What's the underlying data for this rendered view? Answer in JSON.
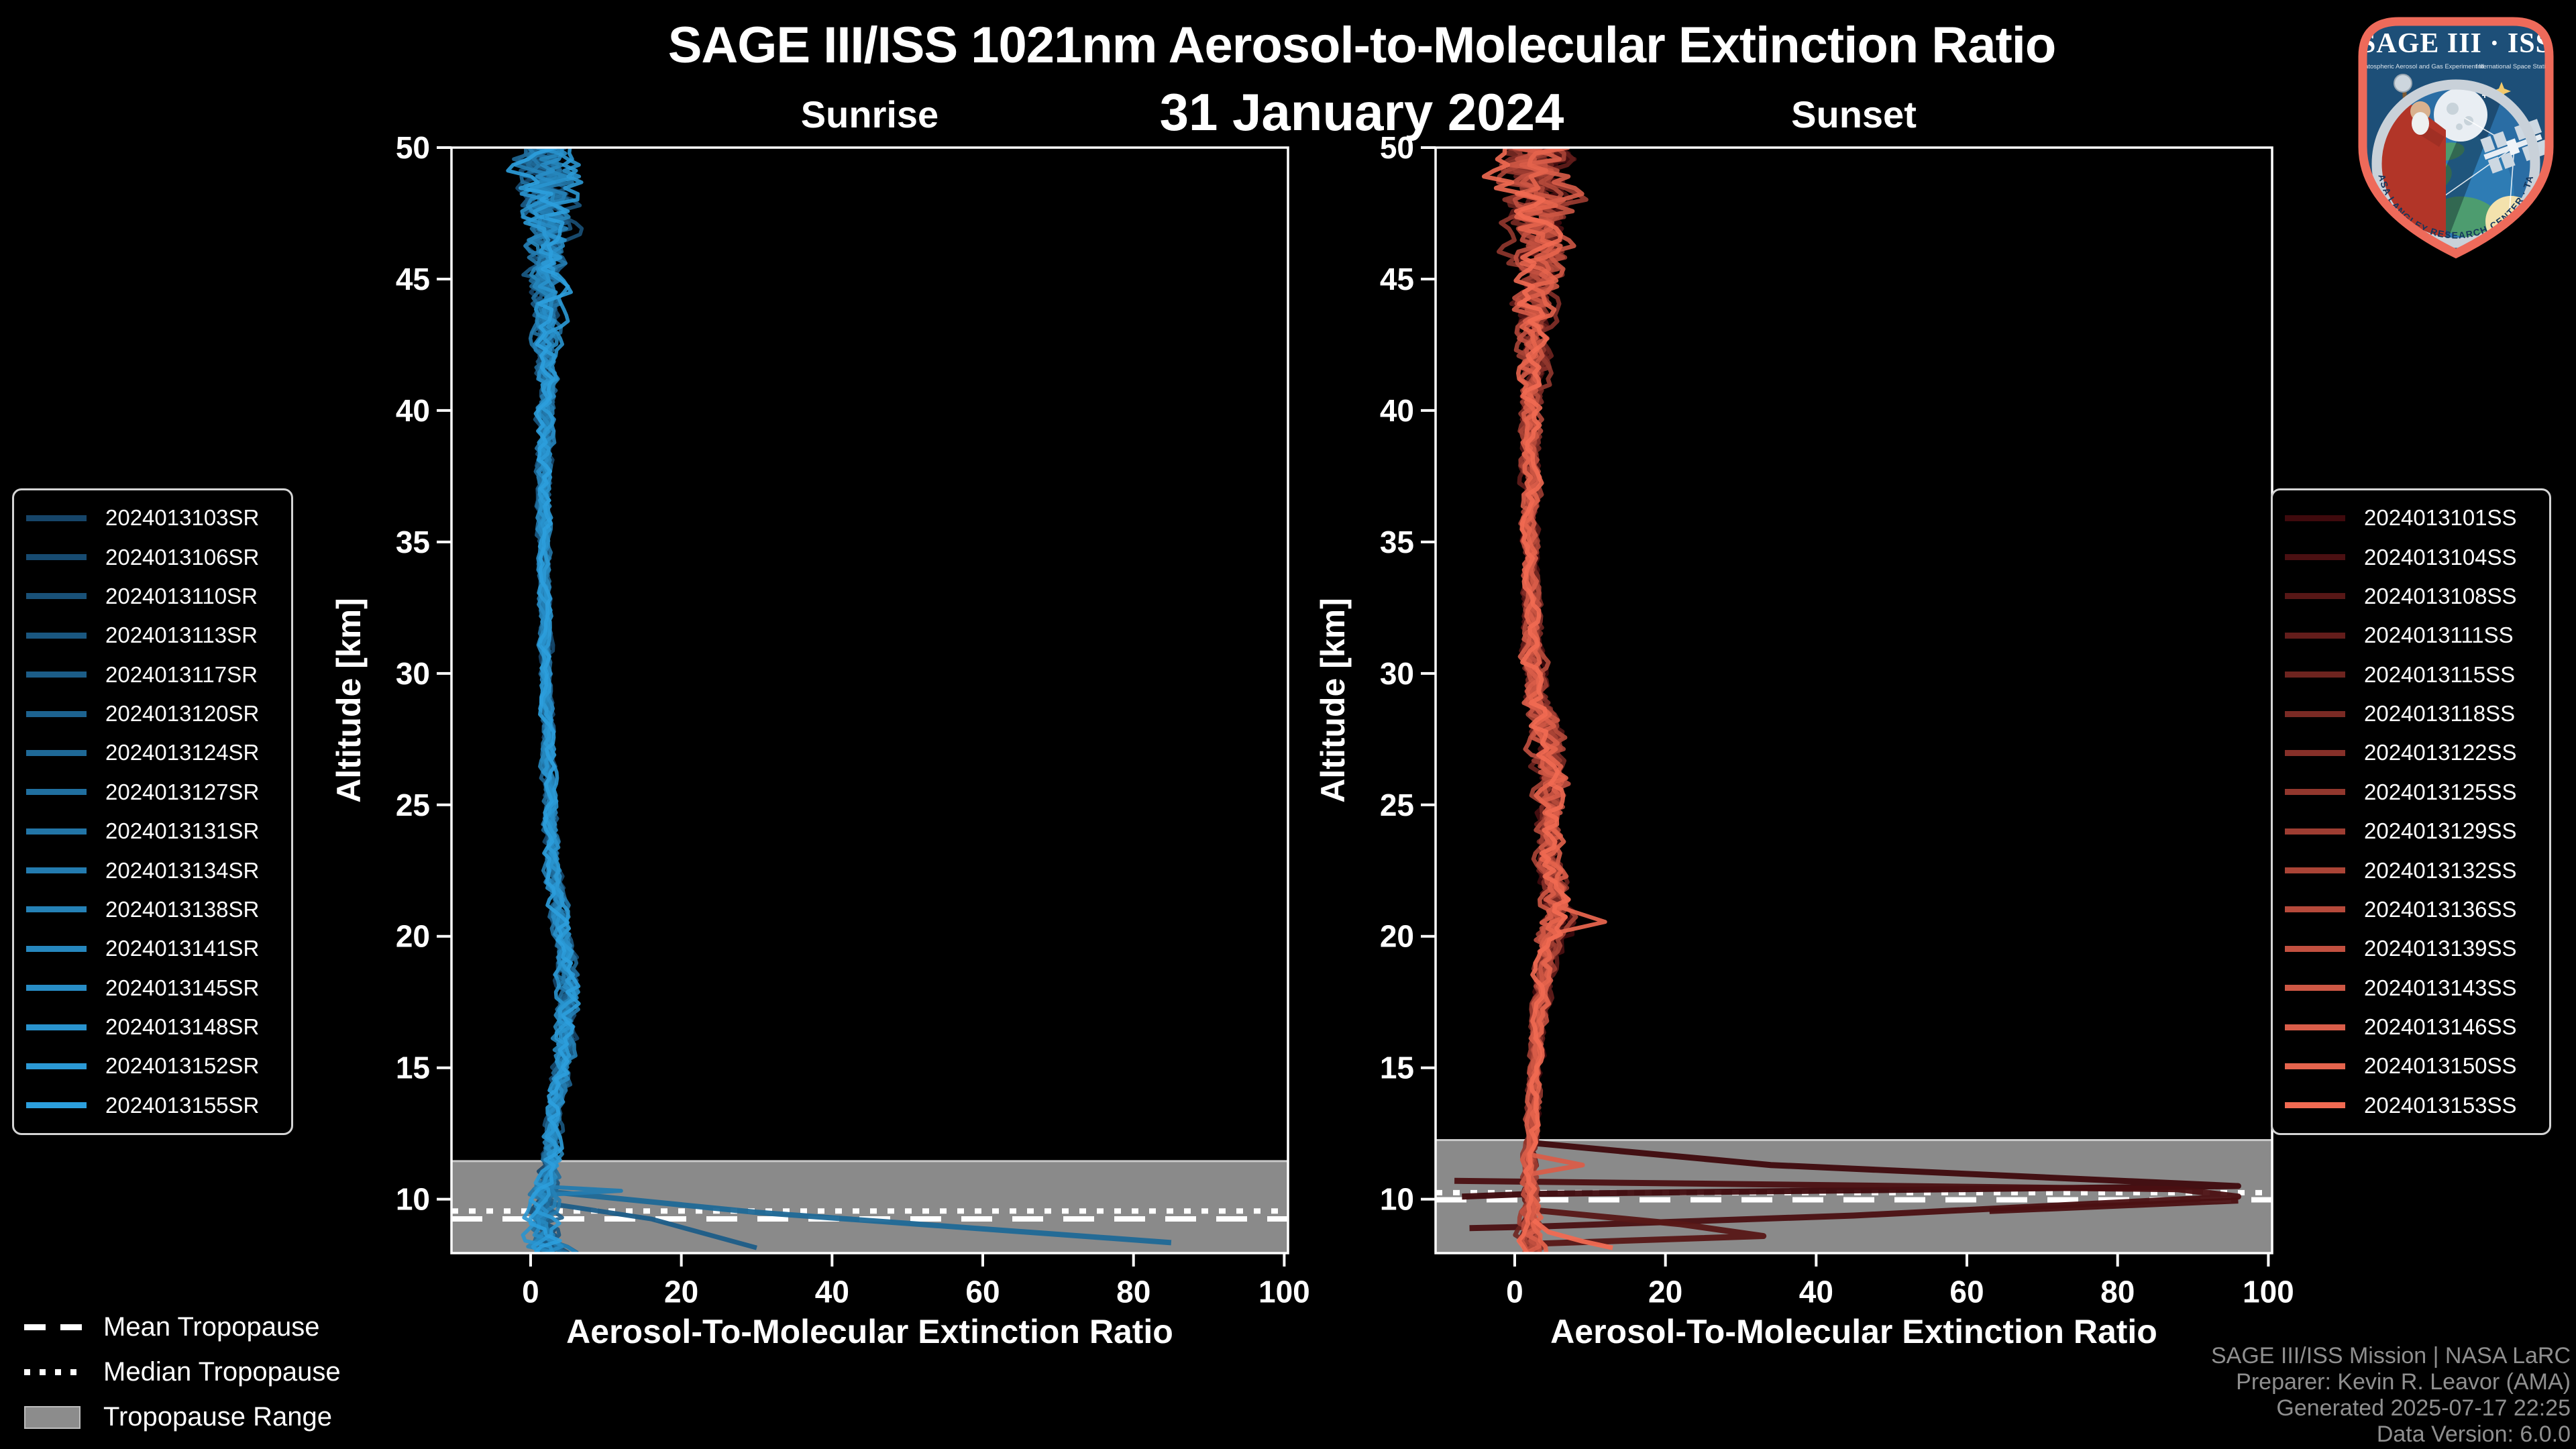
{
  "header": {
    "title": "SAGE III/ISS 1021nm Aerosol-to-Molecular Extinction Ratio",
    "date": "31 January 2024"
  },
  "branding": {
    "logo": {
      "title": "SAGE III · ISS",
      "subtitle_left": "Stratospheric Aerosol and Gas Experiment III",
      "subtitle_right": "International Space Station",
      "rim_text": "BALL · NASA LANGLEY RESEARCH CENTER · TAS-I · ESA",
      "border_color": "#ee6a5a",
      "field_color": "#1d4f78"
    }
  },
  "footer": {
    "credits": [
      "SAGE III/ISS Mission | NASA LaRC",
      "Preparer: Kevin R. Leavor (AMA)",
      "Generated 2025-07-17 22:25",
      "Data Version: 6.0.0"
    ],
    "color": "#8f8f8f"
  },
  "tropopause_legend": {
    "items": [
      {
        "label": "Mean Tropopause",
        "swatch": "dashed-line"
      },
      {
        "label": "Median Tropopause",
        "swatch": "dotted-line"
      },
      {
        "label": "Tropopause Range",
        "swatch": "gray-band"
      }
    ]
  },
  "chart_data": [
    {
      "type": "line",
      "panel": "sunrise",
      "title": "Sunrise",
      "xlabel": "Aerosol-To-Molecular Extinction Ratio",
      "ylabel": "Altitude [km]",
      "xlim": [
        -10.5,
        100.5
      ],
      "ylim": [
        7.95,
        50
      ],
      "xticks": [
        0,
        20,
        40,
        60,
        80,
        100
      ],
      "yticks": [
        50,
        45,
        40,
        35,
        30,
        25,
        20,
        15,
        10
      ],
      "grid": false,
      "legend_position": "left",
      "line_color_start": "#164569",
      "line_color_end": "#2c9fdd",
      "series": [
        "2024013103SR",
        "2024013106SR",
        "2024013110SR",
        "2024013113SR",
        "2024013117SR",
        "2024013120SR",
        "2024013124SR",
        "2024013127SR",
        "2024013131SR",
        "2024013134SR",
        "2024013138SR",
        "2024013141SR",
        "2024013145SR",
        "2024013148SR",
        "2024013152SR",
        "2024013155SR"
      ],
      "tropopause": {
        "range_top_km": 11.45,
        "range_bottom_km": 7.95,
        "median_km": 9.55,
        "mean_km": 9.25,
        "band_color": "#8a8a8a",
        "line_color": "#ffffff"
      },
      "centerline": [
        [
          50,
          2.0
        ],
        [
          47,
          2.4
        ],
        [
          44,
          2.1
        ],
        [
          40,
          1.9
        ],
        [
          36,
          1.8
        ],
        [
          32,
          1.9
        ],
        [
          28,
          2.2
        ],
        [
          25,
          2.5
        ],
        [
          22,
          3.1
        ],
        [
          19.5,
          4.4
        ],
        [
          18,
          5.0
        ],
        [
          16.5,
          4.8
        ],
        [
          15,
          4.0
        ],
        [
          13.5,
          3.2
        ],
        [
          12.5,
          2.8
        ],
        [
          11.5,
          2.6
        ],
        [
          10.5,
          2.0
        ],
        [
          9.5,
          1.8
        ],
        [
          8.5,
          2.4
        ],
        [
          8,
          2.8
        ]
      ],
      "noise_envelope": [
        [
          50,
          4.2
        ],
        [
          48,
          3.6
        ],
        [
          45.5,
          2.6
        ],
        [
          43,
          1.7
        ],
        [
          40,
          1.2
        ],
        [
          36,
          0.8
        ],
        [
          30,
          0.7
        ],
        [
          26,
          0.8
        ],
        [
          22,
          1.0
        ],
        [
          19,
          1.4
        ],
        [
          16,
          1.4
        ],
        [
          13,
          1.1
        ],
        [
          11.5,
          1.3
        ],
        [
          10,
          1.7
        ],
        [
          9,
          2.2
        ],
        [
          8,
          3.0
        ]
      ],
      "spikes": [
        {
          "series": 6,
          "width": 8,
          "points": [
            [
              2,
              10.3
            ],
            [
              30,
              9.5
            ],
            [
              85,
              8.35
            ]
          ]
        },
        {
          "series": 4,
          "width": 7,
          "points": [
            [
              1,
              9.9
            ],
            [
              16,
              9.25
            ],
            [
              30,
              8.15
            ]
          ]
        },
        {
          "series": 9,
          "width": 6,
          "points": [
            [
              0.5,
              10.5
            ],
            [
              12,
              10.32
            ],
            [
              1,
              10.15
            ]
          ]
        }
      ]
    },
    {
      "type": "line",
      "panel": "sunset",
      "title": "Sunset",
      "xlabel": "Aerosol-To-Molecular Extinction Ratio",
      "ylabel": "Altitude [km]",
      "xlim": [
        -10.5,
        100.5
      ],
      "ylim": [
        7.95,
        50
      ],
      "xticks": [
        0,
        20,
        40,
        60,
        80,
        100
      ],
      "yticks": [
        50,
        45,
        40,
        35,
        30,
        25,
        20,
        15,
        10
      ],
      "grid": false,
      "legend_position": "right",
      "line_color_start": "#3f0a0d",
      "line_color_end": "#f16a52",
      "series": [
        "2024013101SS",
        "2024013104SS",
        "2024013108SS",
        "2024013111SS",
        "2024013115SS",
        "2024013118SS",
        "2024013122SS",
        "2024013125SS",
        "2024013129SS",
        "2024013132SS",
        "2024013136SS",
        "2024013139SS",
        "2024013143SS",
        "2024013146SS",
        "2024013150SS",
        "2024013153SS"
      ],
      "tropopause": {
        "range_top_km": 12.25,
        "range_bottom_km": 7.95,
        "median_km": 10.25,
        "mean_km": 9.98,
        "band_color": "#8a8a8a",
        "line_color": "#ffffff"
      },
      "centerline": [
        [
          50,
          3.0
        ],
        [
          47,
          3.0
        ],
        [
          44,
          2.6
        ],
        [
          40,
          2.2
        ],
        [
          36,
          2.0
        ],
        [
          32,
          2.2
        ],
        [
          29,
          3.0
        ],
        [
          27.5,
          4.2
        ],
        [
          26,
          5.0
        ],
        [
          24.5,
          4.4
        ],
        [
          23,
          4.4
        ],
        [
          21.5,
          5.0
        ],
        [
          20.5,
          5.6
        ],
        [
          19.5,
          4.4
        ],
        [
          18,
          3.6
        ],
        [
          16,
          3.0
        ],
        [
          14,
          2.6
        ],
        [
          12,
          2.2
        ],
        [
          10.5,
          2.0
        ],
        [
          9,
          2.0
        ],
        [
          8,
          2.3
        ]
      ],
      "noise_envelope": [
        [
          50,
          5.5
        ],
        [
          48,
          4.6
        ],
        [
          45.5,
          3.2
        ],
        [
          43,
          2.0
        ],
        [
          40,
          1.4
        ],
        [
          36,
          1.0
        ],
        [
          32,
          1.1
        ],
        [
          28,
          2.0
        ],
        [
          26,
          2.4
        ],
        [
          24,
          1.6
        ],
        [
          22,
          1.6
        ],
        [
          20.5,
          2.2
        ],
        [
          19,
          1.2
        ],
        [
          16,
          0.8
        ],
        [
          13,
          0.8
        ],
        [
          11,
          0.9
        ],
        [
          9.5,
          1.2
        ],
        [
          8,
          1.6
        ]
      ],
      "spikes": [
        {
          "series": 0,
          "width": 9,
          "points": [
            [
              2,
              12.15
            ],
            [
              34,
              11.3
            ],
            [
              96,
              10.5
            ],
            [
              2,
              10.2
            ],
            [
              -7,
              10.1
            ]
          ]
        },
        {
          "series": 1,
          "width": 9,
          "points": [
            [
              -8,
              10.7
            ],
            [
              88,
              10.38
            ],
            [
              96,
              10.1
            ],
            [
              45,
              9.38
            ],
            [
              2,
              8.95
            ],
            [
              -6,
              8.9
            ]
          ]
        },
        {
          "series": 2,
          "width": 9,
          "points": [
            [
              2,
              9.6
            ],
            [
              22,
              9.05
            ],
            [
              33,
              8.6
            ],
            [
              2,
              8.3
            ]
          ]
        },
        {
          "series": 1,
          "width": 9,
          "points": [
            [
              63,
              9.55
            ],
            [
              96,
              9.95
            ]
          ]
        },
        {
          "series": 13,
          "width": 7,
          "points": [
            [
              2,
              11.7
            ],
            [
              9,
              11.3
            ],
            [
              2,
              10.95
            ]
          ]
        },
        {
          "series": 14,
          "width": 6,
          "points": [
            [
              5,
              21.2
            ],
            [
              12,
              20.55
            ],
            [
              5,
              20.1
            ]
          ]
        },
        {
          "series": 15,
          "width": 7,
          "points": [
            [
              2.5,
              9.2
            ],
            [
              4.5,
              8.75
            ],
            [
              9,
              8.4
            ],
            [
              13,
              8.15
            ]
          ]
        }
      ]
    }
  ]
}
